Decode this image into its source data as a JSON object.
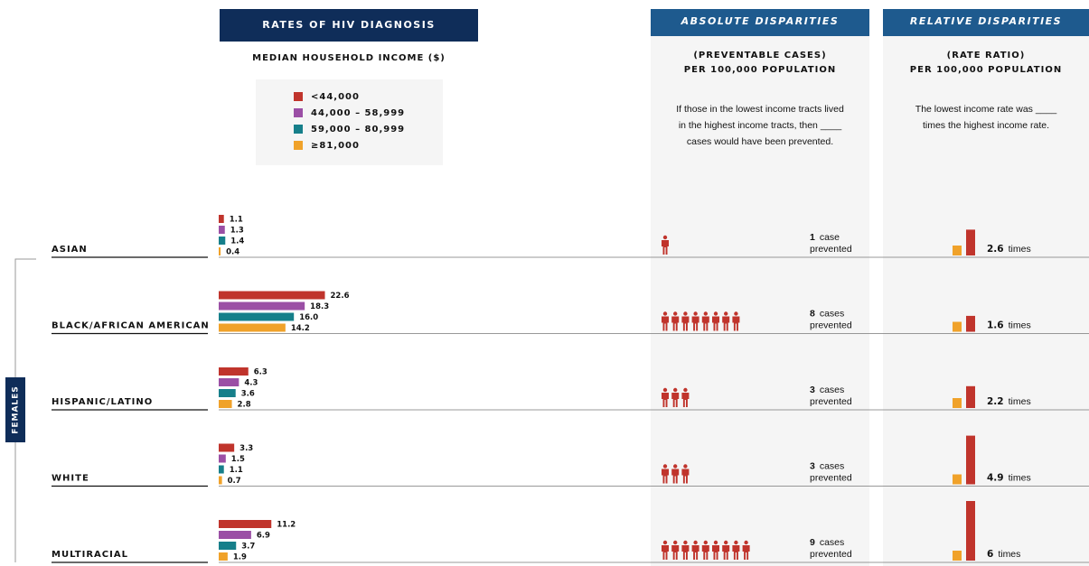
{
  "header": {
    "rates_title": "RATES OF HIV DIAGNOSIS",
    "income_label": "MEDIAN HOUSEHOLD INCOME ($)",
    "absolute_title": "ABSOLUTE DISPARITIES",
    "absolute_sub1": "(PREVENTABLE CASES)",
    "absolute_sub2": "PER 100,000 POPULATION",
    "absolute_desc": [
      "If those in the lowest income tracts lived",
      "in the highest income tracts, then ____",
      "cases would have been prevented."
    ],
    "relative_title": "RELATIVE DISPARITIES",
    "relative_sub1": "(RATE RATIO)",
    "relative_sub2": "PER 100,000 POPULATION",
    "relative_desc": [
      "The lowest income rate was ____",
      "times the highest income rate."
    ]
  },
  "legend": [
    {
      "label": "<44,000",
      "color": "#c0342c"
    },
    {
      "label": "44,000 – 58,999",
      "color": "#9b4fa5"
    },
    {
      "label": "59,000  –  80,999",
      "color": "#167f8a"
    },
    {
      "label": "≥81,000",
      "color": "#f0a22a"
    }
  ],
  "group": "FEMALES",
  "rows": [
    {
      "name": "ASIAN",
      "rates": [
        1.1,
        1.3,
        1.4,
        0.4
      ],
      "rate_labels": [
        "1.1",
        "1.3",
        "1.4",
        "0.4"
      ],
      "cases": 1,
      "cases_word": "case",
      "prevented": "prevented",
      "ratio": 2.6,
      "times": "times"
    },
    {
      "name": "BLACK/AFRICAN AMERICAN",
      "rates": [
        22.6,
        18.3,
        16.0,
        14.2
      ],
      "rate_labels": [
        "22.6",
        "18.3",
        "16.0",
        "14.2"
      ],
      "cases": 8,
      "cases_word": "cases",
      "prevented": "prevented",
      "ratio": 1.6,
      "times": "times"
    },
    {
      "name": "HISPANIC/LATINO",
      "rates": [
        6.3,
        4.3,
        3.6,
        2.8
      ],
      "rate_labels": [
        "6.3",
        "4.3",
        "3.6",
        "2.8"
      ],
      "cases": 3,
      "cases_word": "cases",
      "prevented": "prevented",
      "ratio": 2.2,
      "times": "times"
    },
    {
      "name": "WHITE",
      "rates": [
        3.3,
        1.5,
        1.1,
        0.7
      ],
      "rate_labels": [
        "3.3",
        "1.5",
        "1.1",
        "0.7"
      ],
      "cases": 3,
      "cases_word": "cases",
      "prevented": "prevented",
      "ratio": 4.9,
      "times": "times"
    },
    {
      "name": "MULTIRACIAL",
      "rates": [
        11.2,
        6.9,
        3.7,
        1.9
      ],
      "rate_labels": [
        "11.2",
        "6.9",
        "3.7",
        "1.9"
      ],
      "cases": 9,
      "cases_word": "cases",
      "prevented": "prevented",
      "ratio": 6.0,
      "times": "times"
    }
  ]
}
